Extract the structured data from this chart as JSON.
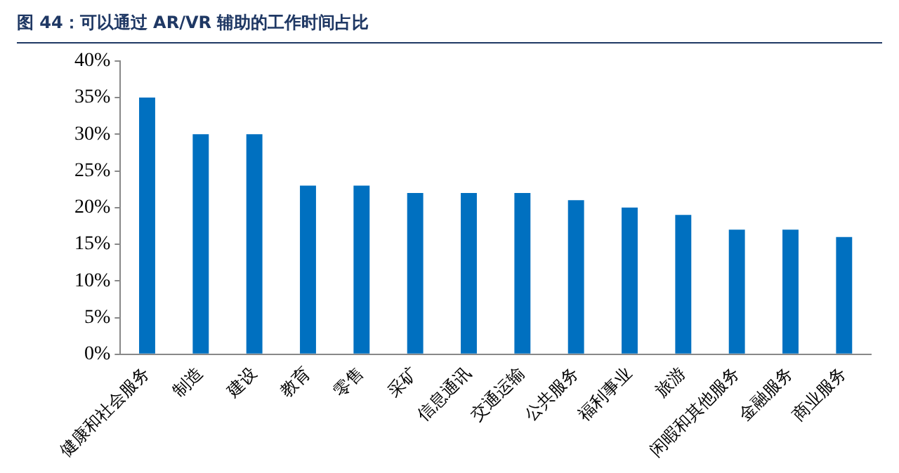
{
  "chart_data": {
    "type": "bar",
    "title": "图 44：可以通过 AR/VR 辅助的工作时间占比",
    "categories": [
      "健康和社会服务",
      "制造",
      "建设",
      "教育",
      "零售",
      "采矿",
      "信息通讯",
      "交通运输",
      "公共服务",
      "福利事业",
      "旅游",
      "闲暇和其他服务",
      "金融服务",
      "商业服务"
    ],
    "values": [
      35,
      30,
      30,
      23,
      23,
      22,
      22,
      22,
      21,
      20,
      19,
      17,
      17,
      16
    ],
    "color": "#0070c0",
    "ylim": [
      0,
      40
    ],
    "yticks": [
      {
        "value": 0,
        "label": "0%"
      },
      {
        "value": 5,
        "label": "5%"
      },
      {
        "value": 10,
        "label": "10%"
      },
      {
        "value": 15,
        "label": "15%"
      },
      {
        "value": 20,
        "label": "20%"
      },
      {
        "value": 25,
        "label": "25%"
      },
      {
        "value": 30,
        "label": "30%"
      },
      {
        "value": 35,
        "label": "35%"
      },
      {
        "value": 40,
        "label": "40%"
      }
    ],
    "grid": false,
    "legend": false
  }
}
